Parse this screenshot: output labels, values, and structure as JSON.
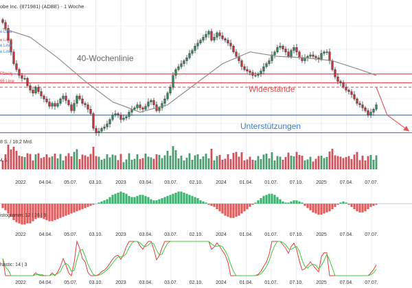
{
  "title": "obe Inc. (871981) (ADBE) - 1 Woche",
  "colors": {
    "up": "#2e8b57",
    "down": "#c8323c",
    "resistance": "#e8474f",
    "support": "#3a7fc4",
    "ma": "#8c8c8c",
    "stoch_k": "#e23b3b",
    "stoch_d": "#3cc83c",
    "arrow": "#e05a5a",
    "grid": "#e3e3e3",
    "axis_text": "#333333"
  },
  "labels": {
    "ma": "40-Wochenlinie",
    "resistance": "Widerstände",
    "support": "Unterstützungen",
    "left_edge": [
      "e Linie",
      "e Linie",
      "e Linie",
      "e Linie"
    ],
    "fib": [
      "Ffzeug",
      "66 Linie"
    ],
    "volume": "8 S. / 18,2 Mrd.",
    "volume_unit": "4 S.",
    "macd": "istogramm: 12 | 26 | 9",
    "stochastic": "hastic: 14 | 3"
  },
  "x_ticks": [
    "2022",
    "04.04.",
    "05.07.",
    "03.10.",
    "2023",
    "03.04.",
    "03.07.",
    "02.10.",
    "2024",
    "01.04.",
    "01.07.",
    "07.10.",
    "2025",
    "07.04.",
    "07.07."
  ],
  "chart_data": [
    {
      "type": "candlestick",
      "panel": "price",
      "title": "obe Inc. (871981) (ADBE) - 1 Woche",
      "x_range": [
        "2021-12",
        "2025-07"
      ],
      "y_range": [
        270,
        690
      ],
      "log_scale": false,
      "grid": true,
      "close_weekly": [
        660,
        640,
        600,
        560,
        520,
        500,
        480,
        470,
        470,
        445,
        430,
        420,
        440,
        425,
        410,
        400,
        390,
        375,
        385,
        375,
        385,
        400,
        410,
        395,
        380,
        360,
        385,
        410,
        400,
        385,
        380,
        365,
        350,
        300,
        285,
        290,
        300,
        305,
        315,
        330,
        345,
        350,
        345,
        330,
        335,
        340,
        355,
        365,
        370,
        380,
        370,
        365,
        375,
        390,
        395,
        380,
        360,
        370,
        385,
        400,
        420,
        440,
        480,
        500,
        510,
        520,
        530,
        540,
        555,
        565,
        580,
        590,
        600,
        610,
        620,
        630,
        600,
        610,
        625,
        615,
        605,
        600,
        590,
        580,
        560,
        545,
        530,
        510,
        500,
        495,
        490,
        480,
        480,
        485,
        495,
        510,
        520,
        530,
        550,
        560,
        575,
        580,
        570,
        560,
        545,
        565,
        575,
        560,
        540,
        530,
        540,
        545,
        550,
        545,
        540,
        535,
        555,
        560,
        560,
        530,
        500,
        475,
        460,
        455,
        440,
        430,
        425,
        415,
        400,
        385,
        380,
        370,
        360,
        345,
        355,
        365,
        380
      ],
      "ma40_line": [
        {
          "week": 0,
          "value": 640
        },
        {
          "week": 10,
          "value": 610
        },
        {
          "week": 20,
          "value": 540
        },
        {
          "week": 30,
          "value": 460
        },
        {
          "week": 40,
          "value": 390
        },
        {
          "week": 50,
          "value": 355
        },
        {
          "week": 60,
          "value": 380
        },
        {
          "week": 70,
          "value": 450
        },
        {
          "week": 80,
          "value": 520
        },
        {
          "week": 90,
          "value": 560
        },
        {
          "week": 100,
          "value": 545
        },
        {
          "week": 110,
          "value": 540
        },
        {
          "week": 120,
          "value": 530
        },
        {
          "week": 130,
          "value": 500
        },
        {
          "week": 136,
          "value": 480
        }
      ],
      "resistance_levels": [
        485,
        455
      ],
      "resistance_dashed": 440,
      "support_levels": [
        345,
        285
      ],
      "projection": [
        [
          136,
          440
        ],
        [
          140,
          345
        ],
        [
          148,
          290
        ]
      ]
    },
    {
      "type": "bar",
      "panel": "volume",
      "ylabel": "8 S. / 18,2 Mrd.",
      "note": "weekly volume bars, colored by candle direction"
    },
    {
      "type": "bar",
      "panel": "macd_histogram",
      "label": "istogramm: 12 | 26 | 9",
      "values": [
        -4,
        -6,
        -9,
        -12,
        -15,
        -17,
        -18,
        -19,
        -19,
        -18,
        -18,
        -16,
        -14,
        -13,
        -13,
        -14,
        -15,
        -16,
        -16,
        -15,
        -14,
        -13,
        -12,
        -11,
        -10,
        -9,
        -8,
        -7,
        -6,
        -5,
        -4,
        -3,
        -2,
        -1,
        0,
        1,
        2,
        3,
        4,
        6,
        8,
        9,
        10,
        11,
        10,
        9,
        7,
        6,
        6,
        7,
        8,
        8,
        7,
        6,
        4,
        3,
        3,
        4,
        5,
        6,
        7,
        8,
        9,
        10,
        11,
        11,
        10,
        9,
        8,
        7,
        6,
        5,
        3,
        2,
        1,
        -1,
        -2,
        -3,
        -5,
        -7,
        -9,
        -11,
        -12,
        -13,
        -13,
        -12,
        -11,
        -9,
        -7,
        -5,
        -3,
        -1,
        1,
        3,
        5,
        7,
        8,
        9,
        9,
        8,
        6,
        4,
        2,
        1,
        1,
        2,
        3,
        3,
        2,
        1,
        -2,
        -4,
        -6,
        -8,
        -9,
        -10,
        -10,
        -9,
        -8,
        -7,
        -5,
        -3,
        -1,
        1,
        2,
        1,
        -1,
        -3,
        -5,
        -7,
        -8,
        -8,
        -7,
        -5,
        -3,
        -2,
        -1
      ]
    },
    {
      "type": "line",
      "panel": "stochastic",
      "label": "hastic: 14 | 3",
      "y_range": [
        0,
        100
      ],
      "series": [
        {
          "name": "%K",
          "note": "red line"
        },
        {
          "name": "%D",
          "note": "green line"
        }
      ]
    }
  ]
}
